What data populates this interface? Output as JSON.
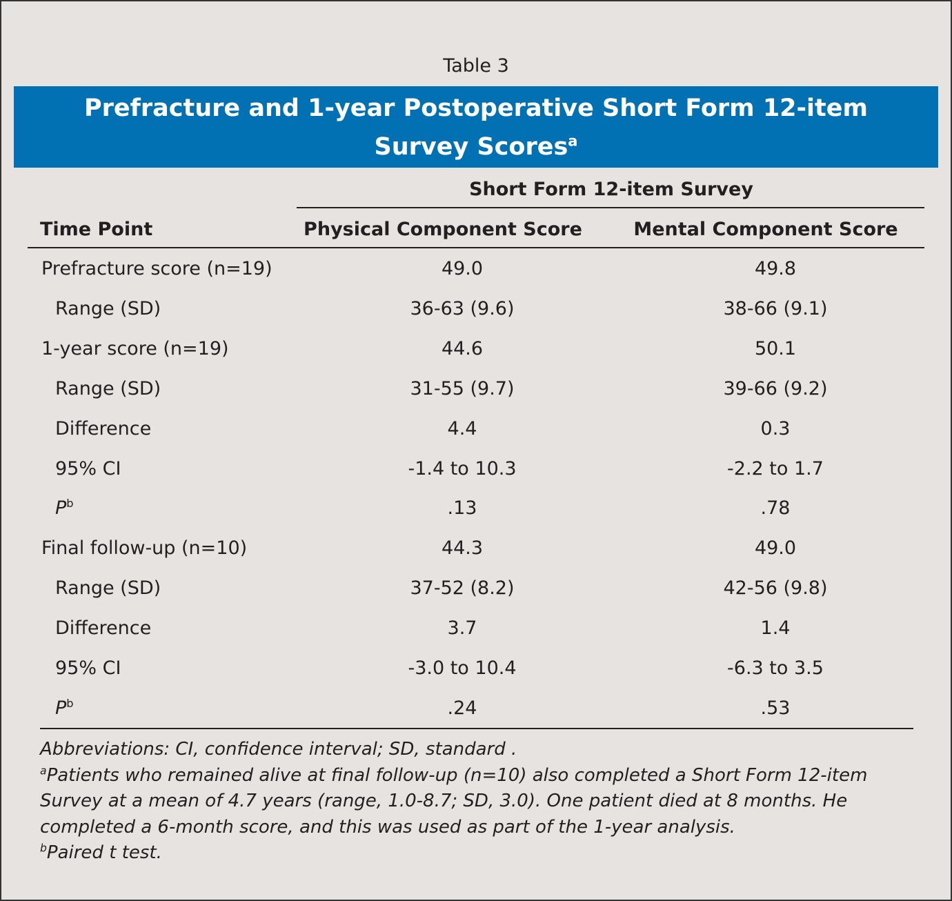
{
  "label": "Table 3",
  "title": {
    "text": "Prefracture and 1-year Postoperative Short Form 12-item Survey Scores",
    "sup": "a"
  },
  "group_header": "Short Form 12-item Survey",
  "columns": [
    "Time Point",
    "Physical Component Score",
    "Mental Component Score"
  ],
  "sections": [
    {
      "label": "Prefracture score (n=19)",
      "values": [
        "49.0",
        "49.8"
      ],
      "subrows": [
        {
          "label": "Range (SD)",
          "values": [
            "36-63 (9.6)",
            "38-66 (9.1)"
          ]
        }
      ]
    },
    {
      "label": "1-year score (n=19)",
      "values": [
        "44.6",
        "50.1"
      ],
      "subrows": [
        {
          "label": "Range (SD)",
          "values": [
            "31-55 (9.7)",
            "39-66 (9.2)"
          ]
        },
        {
          "label": "Difference",
          "values": [
            "4.4",
            "0.3"
          ]
        },
        {
          "label": "95% CI",
          "values": [
            "-1.4 to 10.3",
            "-2.2 to 1.7"
          ]
        },
        {
          "label": "P",
          "sup": "b",
          "values": [
            ".13",
            ".78"
          ]
        }
      ]
    },
    {
      "label": "Final follow-up (n=10)",
      "values": [
        "44.3",
        "49.0"
      ],
      "subrows": [
        {
          "label": "Range (SD)",
          "values": [
            "37-52 (8.2)",
            "42-56 (9.8)"
          ]
        },
        {
          "label": "Difference",
          "values": [
            "3.7",
            "1.4"
          ]
        },
        {
          "label": "95% CI",
          "values": [
            "-3.0 to 10.4",
            "-6.3 to 3.5"
          ]
        },
        {
          "label": "P",
          "sup": "b",
          "values": [
            ".24",
            ".53"
          ]
        }
      ]
    }
  ],
  "footnotes": [
    {
      "text": "Abbreviations: CI, confidence interval; SD, standard ."
    },
    {
      "sup": "a",
      "text": "Patients who remained alive at final follow-up (n=10) also completed a Short Form 12-item Survey at a mean of 4.7 years (range, 1.0-8.7; SD, 3.0). One patient died at 8 months. He completed a 6-month score, and this was used as part of the 1-year analysis."
    },
    {
      "sup": "b",
      "text": "Paired t test."
    }
  ]
}
